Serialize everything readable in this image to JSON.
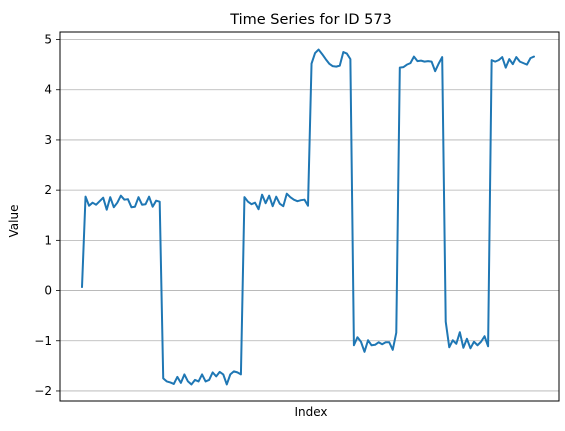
{
  "chart_data": {
    "type": "line",
    "title": "Time Series for ID 573",
    "xlabel": "Index",
    "ylabel": "Value",
    "ylim": [
      -2.2,
      5.15
    ],
    "y_ticks": [
      -2,
      -1,
      0,
      1,
      2,
      3,
      4,
      5
    ],
    "y_tick_labels": [
      "−2",
      "−1",
      "0",
      "1",
      "2",
      "3",
      "4",
      "5"
    ],
    "x_ticks_visible": false,
    "grid": "y-major",
    "series": [
      {
        "color": "#1f77b4",
        "values": [
          0.07,
          1.87,
          1.69,
          1.75,
          1.71,
          1.78,
          1.85,
          1.61,
          1.86,
          1.66,
          1.75,
          1.89,
          1.81,
          1.82,
          1.66,
          1.67,
          1.86,
          1.71,
          1.72,
          1.87,
          1.67,
          1.79,
          1.77,
          -1.75,
          -1.81,
          -1.83,
          -1.86,
          -1.72,
          -1.84,
          -1.67,
          -1.81,
          -1.87,
          -1.78,
          -1.81,
          -1.67,
          -1.81,
          -1.78,
          -1.63,
          -1.71,
          -1.62,
          -1.67,
          -1.87,
          -1.67,
          -1.61,
          -1.63,
          -1.67,
          1.86,
          1.77,
          1.72,
          1.75,
          1.62,
          1.91,
          1.74,
          1.89,
          1.68,
          1.87,
          1.73,
          1.68,
          1.93,
          1.86,
          1.81,
          1.78,
          1.8,
          1.81,
          1.69,
          4.52,
          4.73,
          4.8,
          4.71,
          4.61,
          4.52,
          4.47,
          4.46,
          4.48,
          4.75,
          4.72,
          4.61,
          -1.09,
          -0.93,
          -1.02,
          -1.22,
          -0.99,
          -1.09,
          -1.08,
          -1.03,
          -1.07,
          -1.03,
          -1.03,
          -1.18,
          -0.84,
          4.44,
          4.45,
          4.5,
          4.53,
          4.66,
          4.57,
          4.58,
          4.56,
          4.57,
          4.56,
          4.37,
          4.52,
          4.65,
          -0.62,
          -1.13,
          -0.99,
          -1.06,
          -0.83,
          -1.14,
          -0.96,
          -1.15,
          -1.02,
          -1.09,
          -1.02,
          -0.91,
          -1.11,
          4.59,
          4.56,
          4.59,
          4.65,
          4.44,
          4.61,
          4.51,
          4.65,
          4.56,
          4.53,
          4.5,
          4.63,
          4.66
        ]
      }
    ]
  }
}
